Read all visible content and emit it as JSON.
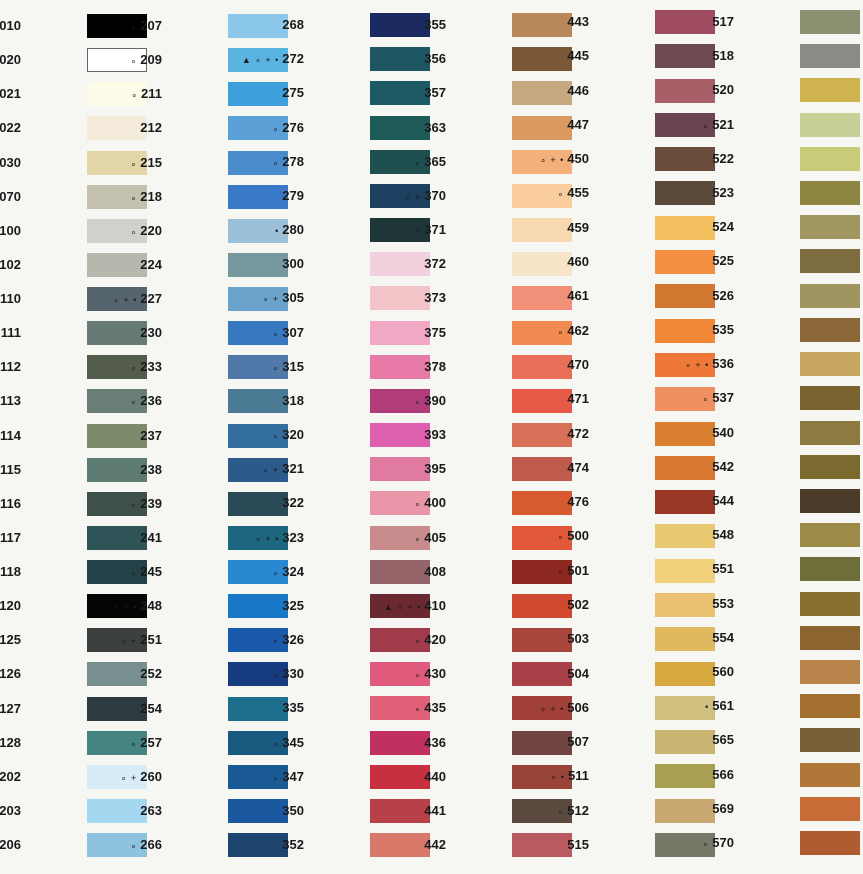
{
  "columns": [
    [
      {
        "code": "010",
        "markers": "▲ ∘ + •",
        "color": "#000000"
      },
      {
        "code": "020",
        "markers": "▲ ∘ + •",
        "color": "#ffffff"
      },
      {
        "code": "021",
        "markers": "∘ •",
        "color": "#fbfbe8"
      },
      {
        "code": "022",
        "markers": "▲ ∘ +",
        "color": "#f5ecdc"
      },
      {
        "code": "030",
        "markers": "∘",
        "color": "#e2d5a8"
      },
      {
        "code": "070",
        "markers": "",
        "color": "#c4c2ae"
      },
      {
        "code": "100",
        "markers": "∘ •",
        "color": "#cfd1cc"
      },
      {
        "code": "102",
        "markers": "∘ +",
        "color": "#b7b8ad"
      },
      {
        "code": "110",
        "markers": "∘ •",
        "color": "#56646e"
      },
      {
        "code": "111",
        "markers": "",
        "color": "#687a76"
      },
      {
        "code": "112",
        "markers": "",
        "color": "#545d4b"
      },
      {
        "code": "113",
        "markers": "",
        "color": "#6a7d77"
      },
      {
        "code": "114",
        "markers": "∘",
        "color": "#7d8a6b"
      },
      {
        "code": "115",
        "markers": "▲ ∘ + •",
        "color": "#5d7a73"
      },
      {
        "code": "116",
        "markers": "∘",
        "color": "#3f504b"
      },
      {
        "code": "117",
        "markers": "∘",
        "color": "#2e5458"
      },
      {
        "code": "118",
        "markers": "",
        "color": "#244048"
      },
      {
        "code": "120",
        "markers": "",
        "color": "#050505"
      },
      {
        "code": "125",
        "markers": "•",
        "color": "#3c4140"
      },
      {
        "code": "126",
        "markers": "",
        "color": "#788f8f"
      },
      {
        "code": "127",
        "markers": "",
        "color": "#2d3a40"
      },
      {
        "code": "128",
        "markers": "",
        "color": "#458480"
      },
      {
        "code": "202",
        "markers": "∘",
        "color": "#d7ecf7"
      },
      {
        "code": "203",
        "markers": "",
        "color": "#a4d7f0"
      },
      {
        "code": "206",
        "markers": "∘",
        "color": "#8ec3e0"
      }
    ],
    [
      {
        "code": "207",
        "markers": "∘",
        "color": "#8cc8ea"
      },
      {
        "code": "209",
        "markers": "∘",
        "color": "#5ab4e2"
      },
      {
        "code": "211",
        "markers": "∘",
        "color": "#3da0dc"
      },
      {
        "code": "212",
        "markers": "",
        "color": "#5aa0d6"
      },
      {
        "code": "215",
        "markers": "∘",
        "color": "#4a8ccb"
      },
      {
        "code": "218",
        "markers": "∘",
        "color": "#3a78c8"
      },
      {
        "code": "220",
        "markers": "∘",
        "color": "#9cc0d8"
      },
      {
        "code": "224",
        "markers": "",
        "color": "#7898a0"
      },
      {
        "code": "227",
        "markers": "∘ + •",
        "color": "#6aa4cc"
      },
      {
        "code": "230",
        "markers": "",
        "color": "#3878c0"
      },
      {
        "code": "233",
        "markers": "∘",
        "color": "#5078a8"
      },
      {
        "code": "236",
        "markers": "∘",
        "color": "#4a7a94"
      },
      {
        "code": "237",
        "markers": "",
        "color": "#336e9e"
      },
      {
        "code": "238",
        "markers": "",
        "color": "#2c5a8a"
      },
      {
        "code": "239",
        "markers": "∘",
        "color": "#2a4a58"
      },
      {
        "code": "241",
        "markers": "",
        "color": "#1c6680"
      },
      {
        "code": "245",
        "markers": "∘",
        "color": "#2888d0"
      },
      {
        "code": "248",
        "markers": "∘ + •",
        "color": "#1a78c8"
      },
      {
        "code": "251",
        "markers": "∘ +",
        "color": "#1a5aaa"
      },
      {
        "code": "252",
        "markers": "",
        "color": "#163c80"
      },
      {
        "code": "254",
        "markers": "",
        "color": "#1e6e8e"
      },
      {
        "code": "257",
        "markers": "∘",
        "color": "#1a5a80"
      },
      {
        "code": "260",
        "markers": "∘ +",
        "color": "#1a5a94"
      },
      {
        "code": "263",
        "markers": "",
        "color": "#1a58a0"
      },
      {
        "code": "266",
        "markers": "∘",
        "color": "#1e4470"
      }
    ],
    [
      {
        "code": "268",
        "markers": "",
        "color": "#1a2a60"
      },
      {
        "code": "272",
        "markers": "▲ ∘ + •",
        "color": "#1e5664"
      },
      {
        "code": "275",
        "markers": "",
        "color": "#1e5a66"
      },
      {
        "code": "276",
        "markers": "∘",
        "color": "#1e5a58"
      },
      {
        "code": "278",
        "markers": "∘",
        "color": "#1e5050"
      },
      {
        "code": "279",
        "markers": "",
        "color": "#1e4060"
      },
      {
        "code": "280",
        "markers": "•",
        "color": "#1e3638"
      },
      {
        "code": "300",
        "markers": "",
        "color": "#f2d0de"
      },
      {
        "code": "305",
        "markers": "∘ +",
        "color": "#f2c4c8"
      },
      {
        "code": "307",
        "markers": "∘",
        "color": "#f0a8c4"
      },
      {
        "code": "315",
        "markers": "∘",
        "color": "#e87aa8"
      },
      {
        "code": "318",
        "markers": "",
        "color": "#b03c7a"
      },
      {
        "code": "320",
        "markers": "∘",
        "color": "#de5eb0"
      },
      {
        "code": "321",
        "markers": "∘ +",
        "color": "#e07aa0"
      },
      {
        "code": "322",
        "markers": "",
        "color": "#ea96a8"
      },
      {
        "code": "323",
        "markers": "∘ + •",
        "color": "#c88c8c"
      },
      {
        "code": "324",
        "markers": "∘",
        "color": "#946468"
      },
      {
        "code": "325",
        "markers": "",
        "color": "#6a2830"
      },
      {
        "code": "326",
        "markers": "∘",
        "color": "#a03c4a"
      },
      {
        "code": "330",
        "markers": "∘",
        "color": "#e05a7c"
      },
      {
        "code": "335",
        "markers": "",
        "color": "#e06078"
      },
      {
        "code": "345",
        "markers": "∘",
        "color": "#c03060"
      },
      {
        "code": "347",
        "markers": "∘",
        "color": "#c83040"
      },
      {
        "code": "350",
        "markers": "",
        "color": "#b84048"
      },
      {
        "code": "352",
        "markers": "",
        "color": "#d87868"
      }
    ],
    [
      {
        "code": "355",
        "markers": "",
        "color": "#b8885a"
      },
      {
        "code": "356",
        "markers": "",
        "color": "#7a5838"
      },
      {
        "code": "357",
        "markers": "",
        "color": "#c8a880"
      },
      {
        "code": "363",
        "markers": "",
        "color": "#dc9a60"
      },
      {
        "code": "365",
        "markers": "∘",
        "color": "#f4b07a"
      },
      {
        "code": "370",
        "markers": "∘ +",
        "color": "#f8cc9c"
      },
      {
        "code": "371",
        "markers": "∘",
        "color": "#f8d8b0"
      },
      {
        "code": "372",
        "markers": "",
        "color": "#f6e4c8"
      },
      {
        "code": "373",
        "markers": "",
        "color": "#f09078"
      },
      {
        "code": "375",
        "markers": "",
        "color": "#f08a50"
      },
      {
        "code": "378",
        "markers": "",
        "color": "#e86e58"
      },
      {
        "code": "390",
        "markers": "∘",
        "color": "#e85a48"
      },
      {
        "code": "393",
        "markers": "",
        "color": "#d87058"
      },
      {
        "code": "395",
        "markers": "",
        "color": "#c05a4c"
      },
      {
        "code": "400",
        "markers": "∘",
        "color": "#d85a30"
      },
      {
        "code": "405",
        "markers": "∘",
        "color": "#e05838"
      },
      {
        "code": "408",
        "markers": "",
        "color": "#8c2820"
      },
      {
        "code": "410",
        "markers": "▲ ∘ + •",
        "color": "#d04830"
      },
      {
        "code": "420",
        "markers": "∘",
        "color": "#a8463c"
      },
      {
        "code": "430",
        "markers": "∘",
        "color": "#a84048"
      },
      {
        "code": "435",
        "markers": "∘",
        "color": "#a04038"
      },
      {
        "code": "436",
        "markers": "",
        "color": "#704440"
      },
      {
        "code": "440",
        "markers": "",
        "color": "#984438"
      },
      {
        "code": "441",
        "markers": "",
        "color": "#5a4a40"
      },
      {
        "code": "442",
        "markers": "",
        "color": "#b85a60"
      }
    ],
    [
      {
        "code": "443",
        "markers": "",
        "color": "#a04c60"
      },
      {
        "code": "445",
        "markers": "",
        "color": "#6e4a50"
      },
      {
        "code": "446",
        "markers": "",
        "color": "#a86068"
      },
      {
        "code": "447",
        "markers": "",
        "color": "#6a4450"
      },
      {
        "code": "450",
        "markers": "∘ + •",
        "color": "#6a4c3c"
      },
      {
        "code": "455",
        "markers": "∘",
        "color": "#5a4a3a"
      },
      {
        "code": "459",
        "markers": "",
        "color": "#f4c060"
      },
      {
        "code": "460",
        "markers": "",
        "color": "#f29040"
      },
      {
        "code": "461",
        "markers": "",
        "color": "#d07830"
      },
      {
        "code": "462",
        "markers": "∘",
        "color": "#f08838"
      },
      {
        "code": "470",
        "markers": "",
        "color": "#ee7838"
      },
      {
        "code": "471",
        "markers": "",
        "color": "#f09060"
      },
      {
        "code": "472",
        "markers": "",
        "color": "#d88030"
      },
      {
        "code": "474",
        "markers": "",
        "color": "#d87830"
      },
      {
        "code": "476",
        "markers": "",
        "color": "#9a3828"
      },
      {
        "code": "500",
        "markers": "∘",
        "color": "#e8c870"
      },
      {
        "code": "501",
        "markers": "∘",
        "color": "#f0d078"
      },
      {
        "code": "502",
        "markers": "",
        "color": "#e8c070"
      },
      {
        "code": "503",
        "markers": "",
        "color": "#e0b860"
      },
      {
        "code": "504",
        "markers": "",
        "color": "#d8a840"
      },
      {
        "code": "506",
        "markers": "∘ + •",
        "color": "#d0c080"
      },
      {
        "code": "507",
        "markers": "",
        "color": "#c8b470"
      },
      {
        "code": "511",
        "markers": "∘ •",
        "color": "#a8a050"
      },
      {
        "code": "512",
        "markers": "∘",
        "color": "#c8a870"
      },
      {
        "code": "515",
        "markers": "",
        "color": "#787868"
      }
    ],
    [
      {
        "code": "517",
        "markers": "",
        "color": "#8a9070"
      },
      {
        "code": "518",
        "markers": "",
        "color": "#8a8a86"
      },
      {
        "code": "520",
        "markers": "",
        "color": "#d0b450"
      },
      {
        "code": "521",
        "markers": "∘",
        "color": "#c8d098"
      },
      {
        "code": "522",
        "markers": "",
        "color": "#c8cc78"
      },
      {
        "code": "523",
        "markers": "",
        "color": "#8c8440"
      },
      {
        "code": "524",
        "markers": "",
        "color": "#a09860"
      },
      {
        "code": "525",
        "markers": "",
        "color": "#7c6c40"
      },
      {
        "code": "526",
        "markers": "",
        "color": "#a09460"
      },
      {
        "code": "535",
        "markers": "",
        "color": "#8c6838"
      },
      {
        "code": "536",
        "markers": "∘ + •",
        "color": "#c8a860"
      },
      {
        "code": "537",
        "markers": "∘",
        "color": "#7c6430"
      },
      {
        "code": "540",
        "markers": "",
        "color": "#8c7a40"
      },
      {
        "code": "542",
        "markers": "",
        "color": "#7a6a30"
      },
      {
        "code": "544",
        "markers": "",
        "color": "#4a3c28"
      },
      {
        "code": "548",
        "markers": "",
        "color": "#9c8a48"
      },
      {
        "code": "551",
        "markers": "",
        "color": "#6e6e38"
      },
      {
        "code": "553",
        "markers": "",
        "color": "#8a7030"
      },
      {
        "code": "554",
        "markers": "",
        "color": "#8c6430"
      },
      {
        "code": "560",
        "markers": "",
        "color": "#b8844c"
      },
      {
        "code": "561",
        "markers": "•",
        "color": "#a47030"
      },
      {
        "code": "565",
        "markers": "",
        "color": "#7a6038"
      },
      {
        "code": "566",
        "markers": "",
        "color": "#b07838"
      },
      {
        "code": "569",
        "markers": "",
        "color": "#c86c38"
      },
      {
        "code": "570",
        "markers": "∘",
        "color": "#b05c30"
      }
    ]
  ]
}
